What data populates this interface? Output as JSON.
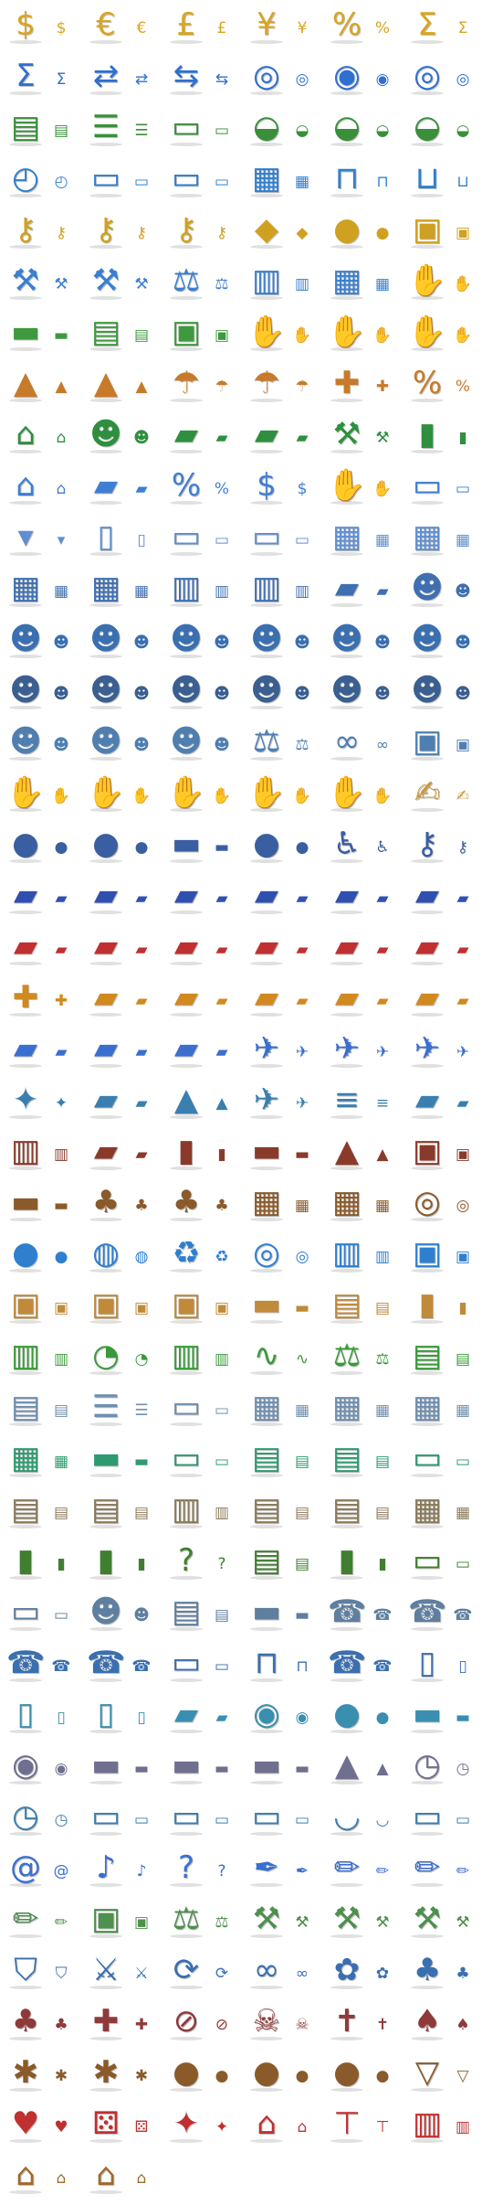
{
  "rows": [
    [
      "dollar-currency",
      "euro-currency",
      "pound-currency",
      "yen-currency",
      "percent",
      "sum"
    ],
    [
      "sum-blue",
      "exchange",
      "money-transfer",
      "coin",
      "coins",
      "coin-gold"
    ],
    [
      "money-coins",
      "coin-stack",
      "money-banknotes",
      "money-bag",
      "money-bag-brown",
      "money-bag-green"
    ],
    [
      "time-is-money",
      "banknote-faded",
      "money-faded",
      "calculator-document",
      "padlock-locked",
      "padlock-unlocked"
    ],
    [
      "keys",
      "key-gold",
      "keys-gold",
      "diamond",
      "piggy-bank",
      "safe"
    ],
    [
      "auction-hammer",
      "gavel",
      "balance-scale",
      "atm",
      "bank",
      "coin-in-hand"
    ],
    [
      "money-wallet",
      "money-stack",
      "box-package",
      "money-in-hand",
      "hand-with-money",
      "money-give"
    ],
    [
      "money-fire",
      "money-burn",
      "umbrella",
      "umbrella-blue",
      "first-aid-money",
      "discount-percent"
    ],
    [
      "house-money",
      "businessman-money",
      "car-money",
      "truck-money",
      "tools-money",
      "gas-station-money"
    ],
    [
      "house-discount",
      "car-discount",
      "discount-money",
      "dollar-document",
      "hand-coins",
      "presentation-money"
    ],
    [
      "shopping-cart",
      "pos-terminal",
      "credit-card",
      "credit-cards",
      "cash-register",
      "cash-register-blue"
    ],
    [
      "calculator",
      "calculator-blue",
      "abacus",
      "barcode",
      "barcode-scanner",
      "businessman"
    ],
    [
      "manager",
      "chart-presenter",
      "speaker",
      "teacher",
      "clerk",
      "police-officer"
    ],
    [
      "security-agent",
      "spy",
      "announcer",
      "employee",
      "consultant",
      "couple"
    ],
    [
      "worker",
      "user-group",
      "team",
      "justice",
      "handcuffs",
      "gift"
    ],
    [
      "handshake",
      "ok-hand",
      "thumbs-up",
      "thumbs-down",
      "hand-wave",
      "hand-write"
    ],
    [
      "hat-blue",
      "hat-gray",
      "briefcase",
      "baby-carriage",
      "wheelchair",
      "car-keys"
    ],
    [
      "car-purple",
      "car-red",
      "car-blue",
      "bus-green",
      "pickup-red",
      "pickup-red-2"
    ],
    [
      "fire-truck",
      "bus-blue",
      "bus-red",
      "truck-green",
      "truck-red",
      "dump-truck"
    ],
    [
      "ambulance",
      "excavator",
      "bulldozer",
      "tractor",
      "train-green",
      "tank-truck"
    ],
    [
      "forklift",
      "motorcycle-blue",
      "motorcycle-red",
      "plane-small",
      "plane-blue",
      "helicopter"
    ],
    [
      "satellite",
      "ship",
      "sailboat",
      "plane",
      "railroad",
      "freight-car"
    ],
    [
      "container",
      "tank-car",
      "barrel",
      "pipe-valve",
      "road",
      "shopping-bag"
    ],
    [
      "suitcase",
      "palm-island",
      "money-island",
      "hotel",
      "hotel-blue",
      "compass"
    ],
    [
      "globe-earth",
      "globe-grid",
      "recycle-globe",
      "lifebuoy",
      "shelf",
      "cardboard-box"
    ],
    [
      "pallet",
      "boxes",
      "boxes-open",
      "pill",
      "printer-paper",
      "database"
    ],
    [
      "bar-chart",
      "pie-chart",
      "column-chart",
      "line-chart",
      "balance",
      "book-open"
    ],
    [
      "document-list",
      "list",
      "presentation",
      "table",
      "spreadsheet",
      "table-green"
    ],
    [
      "table-grid",
      "folder",
      "empty-folder",
      "certificate",
      "documents",
      "check"
    ],
    [
      "scroll",
      "paper-stack",
      "archive",
      "printer",
      "notepad",
      "calendar"
    ],
    [
      "book-green",
      "books",
      "book-help",
      "newspaper",
      "server",
      "computer"
    ],
    [
      "laptop",
      "videoconference",
      "printer-fax",
      "scanner",
      "phone",
      "phone-red"
    ],
    [
      "phone-handset",
      "phone-book",
      "laptop-user",
      "lock-contacts",
      "fax",
      "mobile-phone"
    ],
    [
      "pda",
      "pda-gray",
      "camcorder",
      "camera",
      "mouse",
      "gamepad"
    ],
    [
      "webcam",
      "usb-drive",
      "usb-stick",
      "usb-orange",
      "tv-tower",
      "clock"
    ],
    [
      "stopwatch",
      "network-computer",
      "computers",
      "monitor-network",
      "satellite-dish",
      "postcard"
    ],
    [
      "email-at",
      "help-music",
      "question",
      "pen",
      "pencil",
      "pencil-green"
    ],
    [
      "pencil-draw",
      "box-green",
      "scales",
      "wrench",
      "tools",
      "tools-blue"
    ],
    [
      "shield",
      "swords",
      "sync-arrows",
      "binoculars",
      "flower",
      "tree"
    ],
    [
      "tree-branch",
      "first-aid-kit",
      "no-smoking",
      "skull",
      "grave",
      "playing-cards"
    ],
    [
      "bug",
      "wasp",
      "bear",
      "bull",
      "apple",
      "coffee-cup"
    ],
    [
      "heart",
      "dice",
      "maple-leaf",
      "house-tree",
      "crane",
      "brick-wall"
    ],
    [
      "house-home",
      "house-yellow"
    ]
  ],
  "glyphs": {
    "dollar-currency": "$",
    "euro-currency": "€",
    "pound-currency": "£",
    "yen-currency": "¥",
    "percent": "%",
    "sum": "Σ",
    "sum-blue": "Σ",
    "exchange": "⇄",
    "money-transfer": "⇆",
    "coin": "◎",
    "coins": "◉",
    "coin-gold": "◎",
    "money-coins": "▤",
    "coin-stack": "☰",
    "money-banknotes": "▭",
    "money-bag": "◒",
    "money-bag-brown": "◒",
    "money-bag-green": "◒",
    "time-is-money": "◴",
    "banknote-faded": "▭",
    "money-faded": "▭",
    "calculator-document": "▦",
    "padlock-locked": "⊓",
    "padlock-unlocked": "⊔",
    "keys": "⚷",
    "key-gold": "⚷",
    "keys-gold": "⚷",
    "diamond": "◆",
    "piggy-bank": "●",
    "safe": "▣",
    "auction-hammer": "⚒",
    "gavel": "⚒",
    "balance-scale": "⚖",
    "atm": "▥",
    "bank": "▦",
    "coin-in-hand": "✋",
    "money-wallet": "▬",
    "money-stack": "▤",
    "box-package": "▣",
    "money-in-hand": "✋",
    "hand-with-money": "✋",
    "money-give": "✋",
    "money-fire": "▲",
    "money-burn": "▲",
    "umbrella": "☂",
    "umbrella-blue": "☂",
    "first-aid-money": "✚",
    "discount-percent": "%",
    "house-money": "⌂",
    "businessman-money": "☻",
    "car-money": "▰",
    "truck-money": "▰",
    "tools-money": "⚒",
    "gas-station-money": "▮",
    "house-discount": "⌂",
    "car-discount": "▰",
    "discount-money": "%",
    "dollar-document": "$",
    "hand-coins": "✋",
    "presentation-money": "▭",
    "shopping-cart": "▾",
    "pos-terminal": "▯",
    "credit-card": "▭",
    "credit-cards": "▭",
    "cash-register": "▦",
    "cash-register-blue": "▦",
    "calculator": "▦",
    "calculator-blue": "▦",
    "abacus": "▥",
    "barcode": "▥",
    "barcode-scanner": "▰",
    "businessman": "☻",
    "manager": "☻",
    "chart-presenter": "☻",
    "speaker": "☻",
    "teacher": "☻",
    "clerk": "☻",
    "police-officer": "☻",
    "security-agent": "☻",
    "spy": "☻",
    "announcer": "☻",
    "employee": "☻",
    "consultant": "☻",
    "couple": "☻",
    "worker": "☻",
    "user-group": "☻",
    "team": "☻",
    "justice": "⚖",
    "handcuffs": "∞",
    "gift": "▣",
    "handshake": "✋",
    "ok-hand": "✋",
    "thumbs-up": "✋",
    "thumbs-down": "✋",
    "hand-wave": "✋",
    "hand-write": "✍",
    "hat-blue": "●",
    "hat-gray": "●",
    "briefcase": "▬",
    "baby-carriage": "●",
    "wheelchair": "♿",
    "car-keys": "⚷",
    "car-purple": "▰",
    "car-red": "▰",
    "car-blue": "▰",
    "bus-green": "▰",
    "pickup-red": "▰",
    "pickup-red-2": "▰",
    "fire-truck": "▰",
    "bus-blue": "▰",
    "bus-red": "▰",
    "truck-green": "▰",
    "truck-red": "▰",
    "dump-truck": "▰",
    "ambulance": "✚",
    "excavator": "▰",
    "bulldozer": "▰",
    "tractor": "▰",
    "train-green": "▰",
    "tank-truck": "▰",
    "forklift": "▰",
    "motorcycle-blue": "▰",
    "motorcycle-red": "▰",
    "plane-small": "✈",
    "plane-blue": "✈",
    "helicopter": "✈",
    "satellite": "✦",
    "ship": "▰",
    "sailboat": "▲",
    "plane": "✈",
    "railroad": "≡",
    "freight-car": "▰",
    "container": "▥",
    "tank-car": "▰",
    "barrel": "▮",
    "pipe-valve": "▬",
    "road": "▲",
    "shopping-bag": "▣",
    "suitcase": "▬",
    "palm-island": "♣",
    "money-island": "♣",
    "hotel": "▦",
    "hotel-blue": "▦",
    "compass": "◎",
    "globe-earth": "●",
    "globe-grid": "◍",
    "recycle-globe": "♻",
    "lifebuoy": "◎",
    "shelf": "▥",
    "cardboard-box": "▣",
    "pallet": "▣",
    "boxes": "▣",
    "boxes-open": "▣",
    "pill": "▬",
    "printer-paper": "▤",
    "database": "▮",
    "bar-chart": "▥",
    "pie-chart": "◔",
    "column-chart": "▥",
    "line-chart": "∿",
    "balance": "⚖",
    "book-open": "▤",
    "document-list": "▤",
    "list": "☰",
    "presentation": "▭",
    "table": "▦",
    "spreadsheet": "▦",
    "table-green": "▦",
    "table-grid": "▦",
    "folder": "▬",
    "empty-folder": "▭",
    "certificate": "▤",
    "documents": "▤",
    "check": "▭",
    "scroll": "▤",
    "paper-stack": "▤",
    "archive": "▥",
    "printer": "▤",
    "notepad": "▤",
    "calendar": "▦",
    "book-green": "▮",
    "books": "▮",
    "book-help": "?",
    "newspaper": "▤",
    "server": "▮",
    "computer": "▭",
    "laptop": "▭",
    "videoconference": "☻",
    "printer-fax": "▤",
    "scanner": "▬",
    "phone": "☎",
    "phone-red": "☎",
    "phone-handset": "☎",
    "phone-book": "☎",
    "laptop-user": "▭",
    "lock-contacts": "⊓",
    "fax": "☎",
    "mobile-phone": "▯",
    "pda": "▯",
    "pda-gray": "▯",
    "camcorder": "▰",
    "camera": "◉",
    "mouse": "●",
    "gamepad": "▬",
    "webcam": "◉",
    "usb-drive": "▬",
    "usb-stick": "▬",
    "usb-orange": "▬",
    "tv-tower": "▲",
    "clock": "◷",
    "stopwatch": "◷",
    "network-computer": "▭",
    "computers": "▭",
    "monitor-network": "▭",
    "satellite-dish": "◡",
    "postcard": "▭",
    "email-at": "@",
    "help-music": "♪",
    "question": "?",
    "pen": "✒",
    "pencil": "✏",
    "pencil-green": "✏",
    "pencil-draw": "✏",
    "box-green": "▣",
    "scales": "⚖",
    "wrench": "⚒",
    "tools": "⚒",
    "tools-blue": "⚒",
    "shield": "⛉",
    "swords": "⚔",
    "sync-arrows": "⟳",
    "binoculars": "∞",
    "flower": "✿",
    "tree": "♣",
    "tree-branch": "♣",
    "first-aid-kit": "✚",
    "no-smoking": "⊘",
    "skull": "☠",
    "grave": "✝",
    "playing-cards": "♠",
    "bug": "✱",
    "wasp": "✱",
    "bear": "●",
    "bull": "●",
    "apple": "●",
    "coffee-cup": "▽",
    "heart": "♥",
    "dice": "⚄",
    "maple-leaf": "✦",
    "house-tree": "⌂",
    "crane": "⊤",
    "brick-wall": "▥",
    "house-home": "⌂",
    "house-yellow": "⌂"
  },
  "row_colors": [
    "#d9a520",
    "#2f6fd0",
    "#3a8f3a",
    "#2f7fd0",
    "#d0a020",
    "#3a7fd0",
    "#3f9a3f",
    "#c77b2a",
    "#2f8f3f",
    "#3f7fd0",
    "#5f8fd0",
    "#3f6fb0",
    "#3a6fb0",
    "#3a5f90",
    "#4f7fb0",
    "#c9963a",
    "#3a5fa0",
    "#3050b0",
    "#c03030",
    "#d08a20",
    "#3a6fd0",
    "#3a7fb0",
    "#8a3a2a",
    "#8a5a2a",
    "#2f7fd0",
    "#c08a3a",
    "#3a9a3a",
    "#6f8fb0",
    "#2f9a6f",
    "#8a7a5a",
    "#3f7f2f",
    "#5f7fa0",
    "#3a6fb0",
    "#3a8fb0",
    "#6f6f8f",
    "#3a7fb0",
    "#3a6fd0",
    "#4f8f4f",
    "#3a6fb0",
    "#8f3a3a",
    "#8a5a2a",
    "#c03030",
    "#a06a2a"
  ],
  "bg_tint": "#ffffff"
}
